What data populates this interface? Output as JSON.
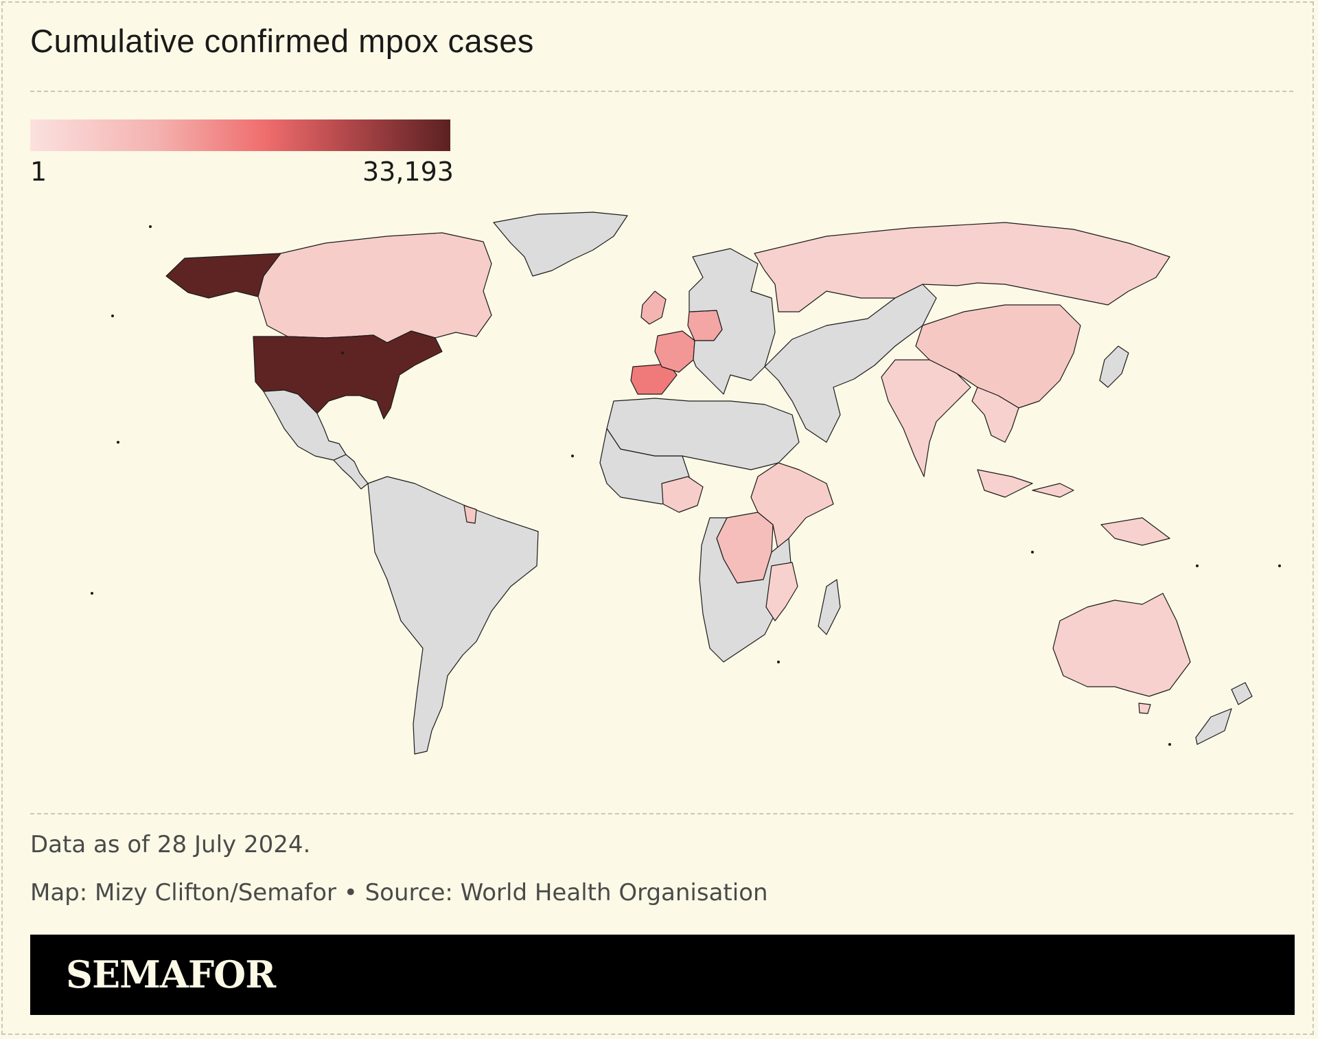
{
  "title": "Cumulative confirmed mpox cases",
  "legend": {
    "min_label": "1",
    "max_label": "33,193",
    "colors": [
      "#f9e4df",
      "#f4b5b2",
      "#ef6b6b",
      "#b8474b",
      "#5e2424"
    ],
    "no_data_color": "#dcdcdc"
  },
  "map": {
    "projection": "equirectangular",
    "ocean_color": "#fcf9e6",
    "regions": [
      {
        "name": "Alaska",
        "level": 1.0
      },
      {
        "name": "Canada",
        "level": 0.12
      },
      {
        "name": "United States",
        "level": 1.0
      },
      {
        "name": "Greenland",
        "level": 0
      },
      {
        "name": "Mexico",
        "level": 0
      },
      {
        "name": "Central America",
        "level": 0
      },
      {
        "name": "South America",
        "level": 0
      },
      {
        "name": "French Guiana",
        "level": 0.15
      },
      {
        "name": "Spain",
        "level": 0.45
      },
      {
        "name": "France",
        "level": 0.35
      },
      {
        "name": "Germany",
        "level": 0.3
      },
      {
        "name": "United Kingdom",
        "level": 0.25
      },
      {
        "name": "Europe",
        "level": 0
      },
      {
        "name": "Russia",
        "level": 0.1
      },
      {
        "name": "Middle East and Central Asia",
        "level": 0
      },
      {
        "name": "China",
        "level": 0.15
      },
      {
        "name": "India",
        "level": 0.1
      },
      {
        "name": "Southeast Asia",
        "level": 0.1
      },
      {
        "name": "North Africa",
        "level": 0
      },
      {
        "name": "West Africa",
        "level": 0
      },
      {
        "name": "Nigeria",
        "level": 0.12
      },
      {
        "name": "DR Congo",
        "level": 0.2
      },
      {
        "name": "East Africa",
        "level": 0.12
      },
      {
        "name": "Southern Africa",
        "level": 0
      },
      {
        "name": "Mozambique",
        "level": 0.1
      },
      {
        "name": "Madagascar",
        "level": 0
      },
      {
        "name": "Australia",
        "level": 0.1
      },
      {
        "name": "New Zealand",
        "level": 0
      },
      {
        "name": "Japan",
        "level": 0
      }
    ]
  },
  "notes": {
    "date_note": "Data as of 28 July 2024.",
    "credit": "Map: Mizy Clifton/Semafor • Source: World Health Organisation"
  },
  "brand": "SEMAFOR"
}
